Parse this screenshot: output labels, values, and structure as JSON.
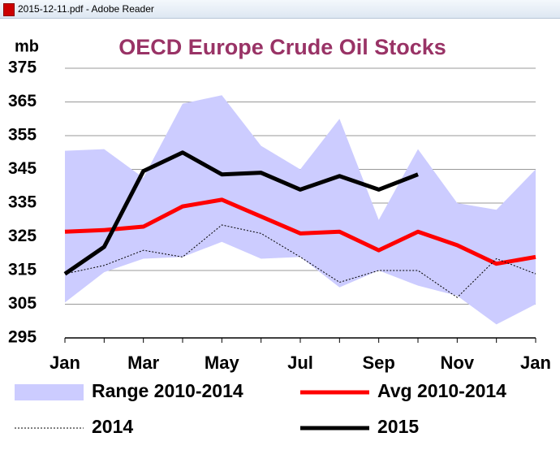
{
  "window_title": "2015-12-11.pdf - Adobe Reader",
  "chart_data": {
    "type": "line",
    "title": "OECD Europe Crude Oil Stocks",
    "ylabel": "mb",
    "categories": [
      "Jan",
      null,
      "Mar",
      null,
      "May",
      null,
      "Jul",
      null,
      "Sep",
      null,
      "Nov",
      null,
      "Jan"
    ],
    "ylim": [
      295,
      375
    ],
    "yticks": [
      295,
      305,
      315,
      325,
      335,
      345,
      355,
      365,
      375
    ],
    "grid": true,
    "legend": "bottom",
    "series": [
      {
        "name": "Range 2010-2014",
        "color": "#ccccff",
        "line_style": "band",
        "values": [
          350.5,
          351,
          342.5,
          364.5,
          367,
          352,
          345,
          360,
          330,
          351,
          335,
          333,
          345
        ],
        "low": [
          305.5,
          314.5,
          318.5,
          319,
          323.5,
          318.5,
          319,
          310,
          315,
          310.5,
          307.5,
          299,
          305
        ]
      },
      {
        "name": "Avg 2010-2014",
        "color": "#ff0000",
        "line_style": "thick",
        "values": [
          326.5,
          327,
          328,
          334,
          336,
          331,
          326,
          326.5,
          321,
          326.5,
          322.5,
          317,
          319
        ]
      },
      {
        "name": "2014",
        "color": "#000000",
        "line_style": "dotted",
        "values": [
          314,
          316.5,
          321,
          319,
          328.5,
          326,
          319,
          311.5,
          315,
          315,
          307,
          318.5,
          314
        ]
      },
      {
        "name": "2015",
        "color": "#000000",
        "line_style": "thick",
        "values": [
          314,
          322,
          344.5,
          350,
          343.5,
          344,
          339,
          343,
          339,
          343.5,
          null,
          null,
          null
        ]
      }
    ]
  }
}
